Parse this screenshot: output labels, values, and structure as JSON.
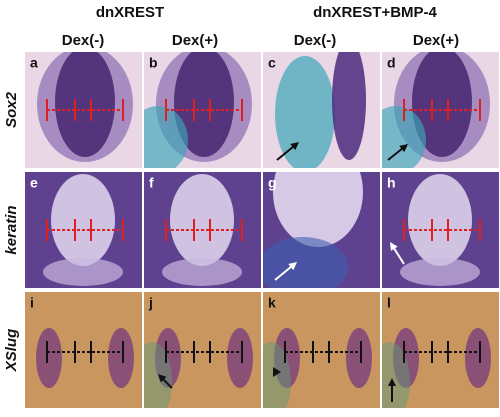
{
  "column_groups": [
    {
      "label": "dnXREST",
      "columns": [
        "Dex(-)",
        "Dex(+)"
      ]
    },
    {
      "label": "dnXREST+BMP-4",
      "columns": [
        "Dex(-)",
        "Dex(+)"
      ]
    }
  ],
  "rows": [
    {
      "label": "Sox2",
      "panels": [
        "a",
        "b",
        "c",
        "d"
      ]
    },
    {
      "label": "keratin",
      "panels": [
        "e",
        "f",
        "g",
        "h"
      ]
    },
    {
      "label": "XSlug",
      "panels": [
        "i",
        "j",
        "k",
        "l"
      ]
    }
  ]
}
